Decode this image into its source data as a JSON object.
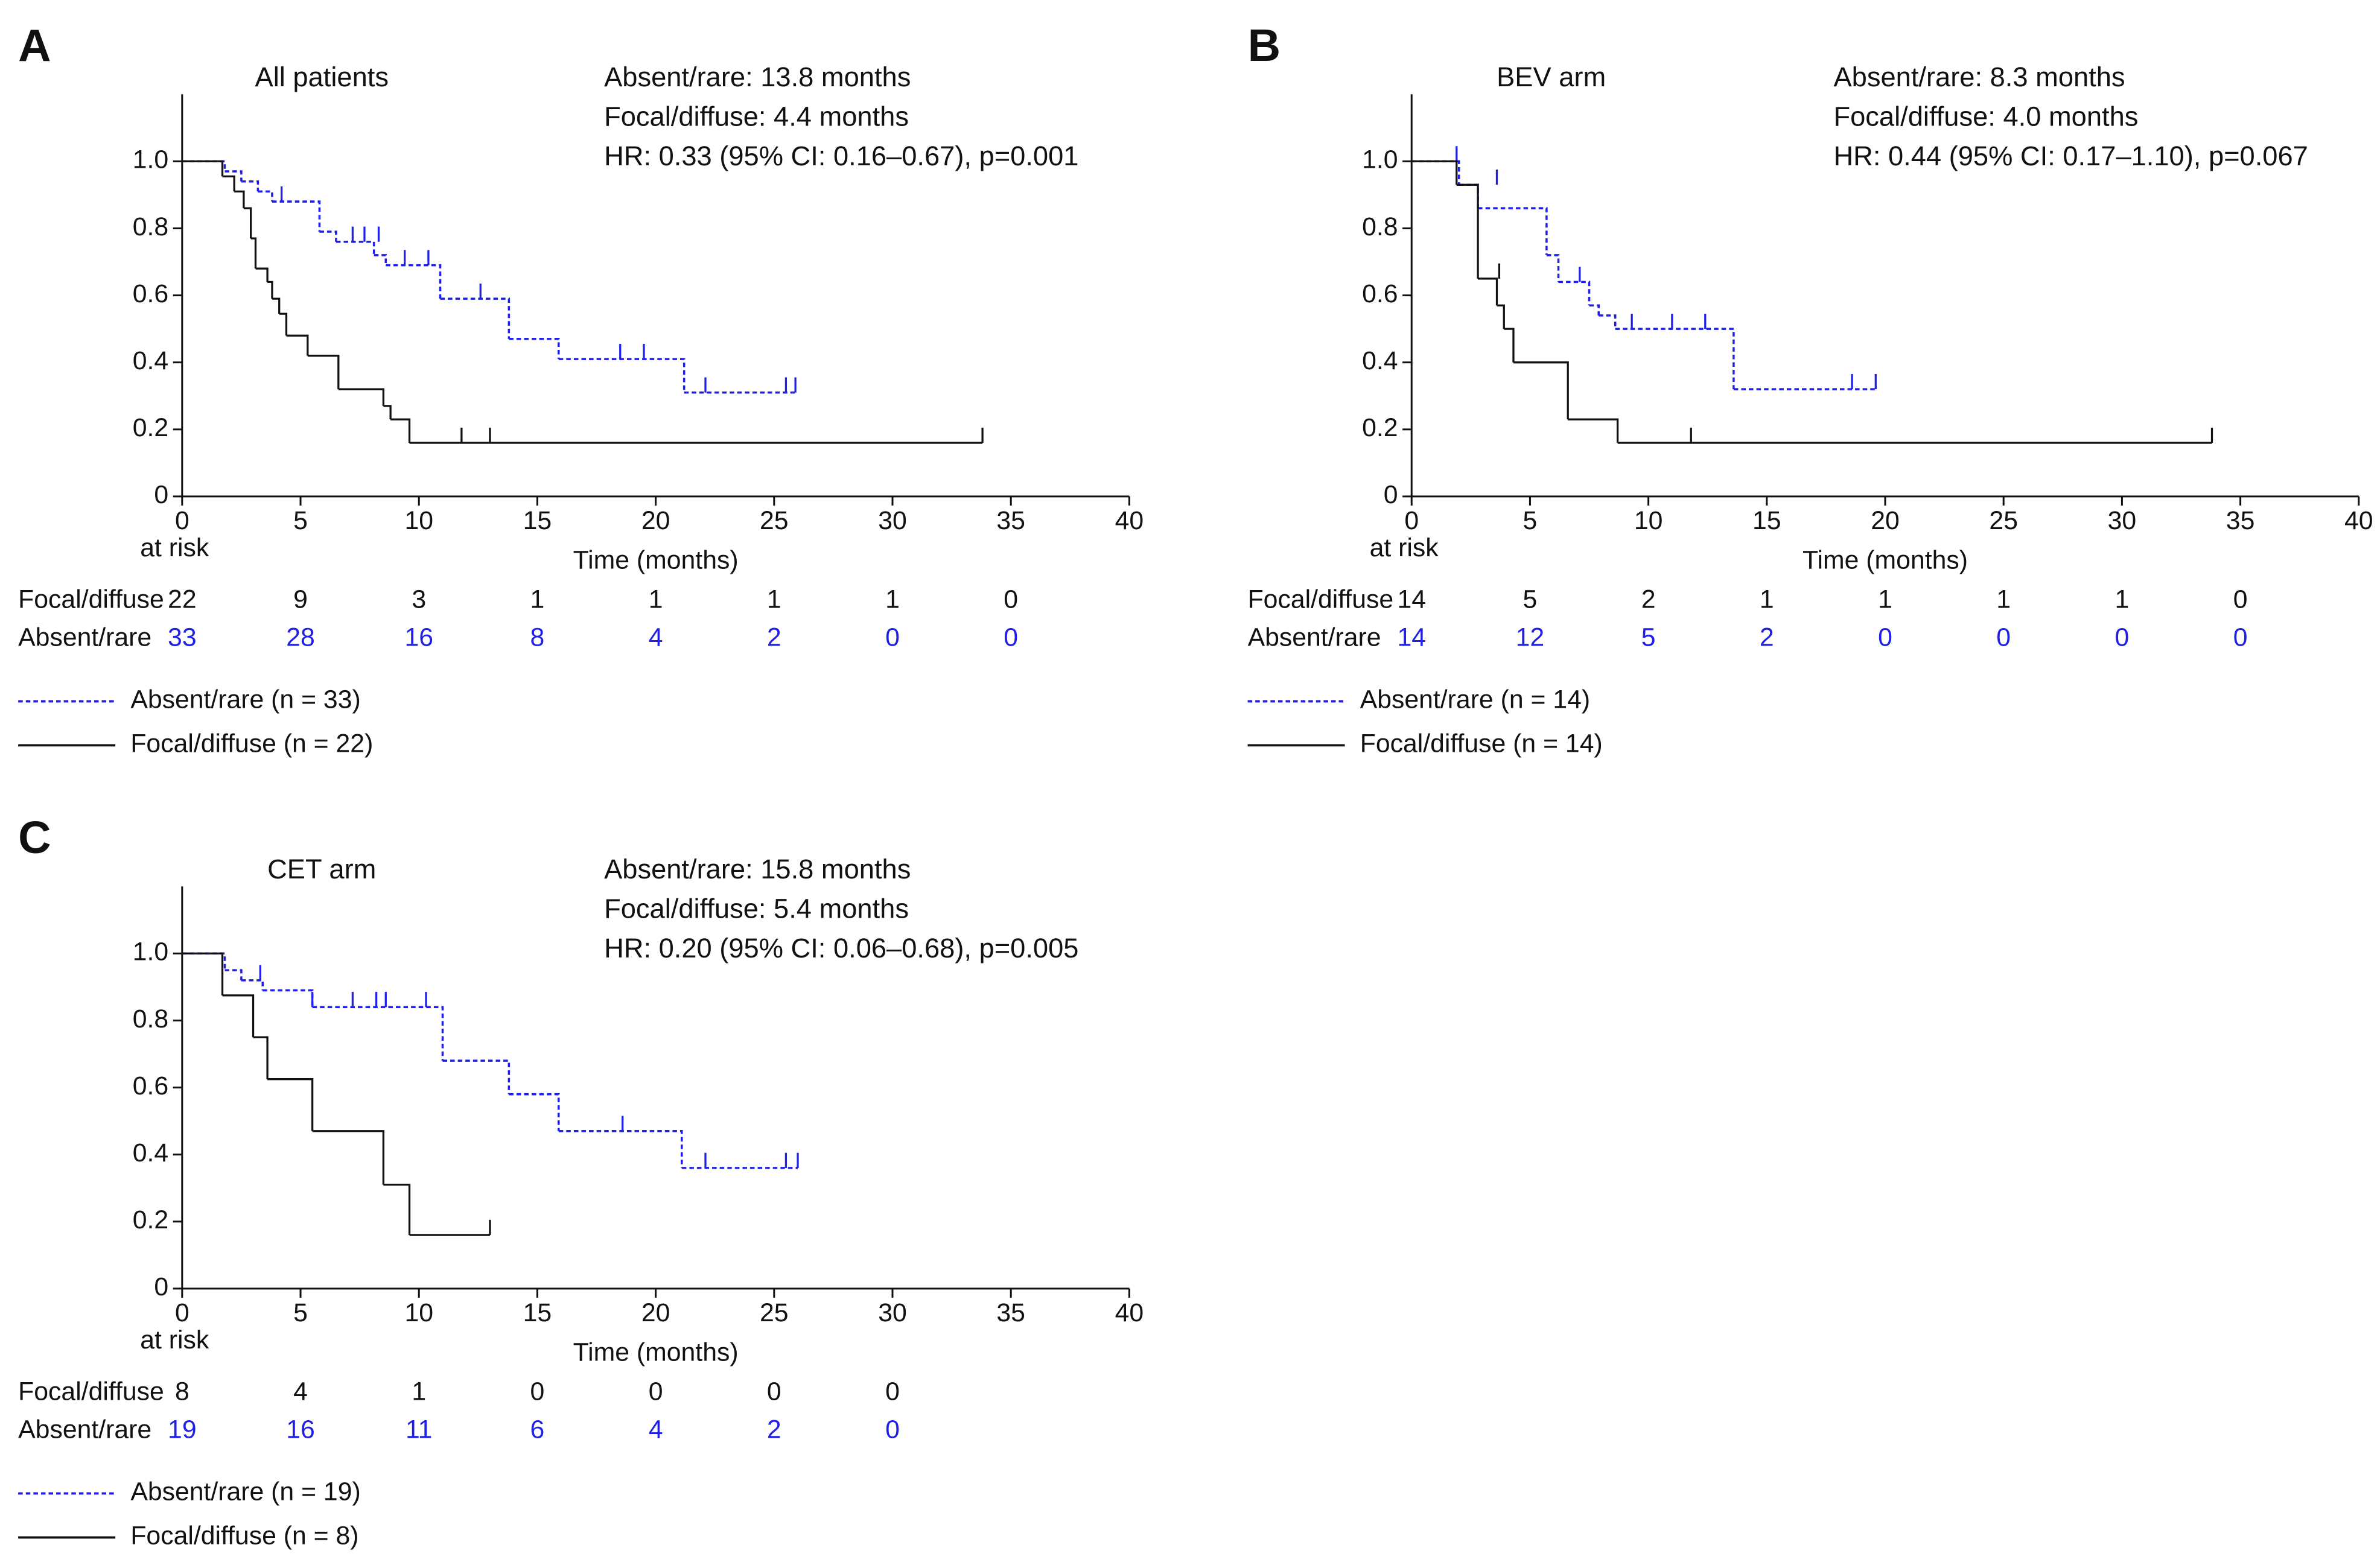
{
  "chart_data": [
    {
      "type": "step",
      "panel": "A",
      "title": "All patients",
      "annotations": [
        "Absent/rare: 13.8 months",
        "Focal/diffuse: 4.4 months",
        "HR: 0.33 (95% CI: 0.16–0.67), p=0.001"
      ],
      "xlabel": "Time (months)",
      "xlim": [
        0,
        40
      ],
      "xticks": [
        0,
        5,
        10,
        15,
        20,
        25,
        30,
        35,
        40
      ],
      "ylim": [
        0,
        1.2
      ],
      "yticks": [
        0,
        0.2,
        0.4,
        0.6,
        0.8,
        {
          "value": 1,
          "label": "1.0"
        }
      ],
      "series": [
        {
          "name": "Absent/rare (n = 33)",
          "color": "#1f1fe6",
          "dashed": true,
          "x": [
            0,
            1.8,
            2.5,
            3.2,
            3.8,
            5.8,
            6.5,
            8.1,
            8.6,
            10.9,
            13.8,
            15.9,
            21.2,
            25.9
          ],
          "values": [
            1,
            0.97,
            0.94,
            0.91,
            0.88,
            0.79,
            0.76,
            0.72,
            0.69,
            0.59,
            0.47,
            0.41,
            0.31,
            0.31
          ],
          "censor_x": [
            4.2,
            7.2,
            7.7,
            8.3,
            9.4,
            10.4,
            12.6,
            18.5,
            19.5,
            22.1,
            25.5,
            25.9
          ],
          "censor_values": [
            0.88,
            0.76,
            0.76,
            0.76,
            0.69,
            0.69,
            0.59,
            0.41,
            0.41,
            0.31,
            0.31,
            0.31
          ]
        },
        {
          "name": "Focal/diffuse (n = 22)",
          "color": "#111111",
          "dashed": false,
          "x": [
            0,
            1.7,
            2.2,
            2.6,
            2.9,
            3.1,
            3.6,
            3.8,
            4.1,
            4.4,
            5.3,
            6.6,
            8.5,
            8.8,
            9.6,
            33.8
          ],
          "values": [
            1,
            0.955,
            0.91,
            0.86,
            0.77,
            0.68,
            0.64,
            0.59,
            0.545,
            0.48,
            0.42,
            0.32,
            0.27,
            0.23,
            0.16,
            0.16
          ],
          "censor_x": [
            11.8,
            13,
            33.8
          ],
          "censor_values": [
            0.16,
            0.16,
            0.16
          ]
        }
      ],
      "risk_table": {
        "label": "at risk",
        "rows": [
          {
            "name": "Focal/diffuse",
            "color": "#111111",
            "values": [
              22,
              9,
              3,
              1,
              1,
              1,
              1,
              0
            ]
          },
          {
            "name": "Absent/rare",
            "color": "#1f1fe6",
            "values": [
              33,
              28,
              16,
              8,
              4,
              2,
              0,
              0
            ]
          }
        ]
      }
    },
    {
      "type": "step",
      "panel": "B",
      "title": "BEV arm",
      "annotations": [
        "Absent/rare: 8.3 months",
        "Focal/diffuse: 4.0 months",
        "HR: 0.44 (95% CI: 0.17–1.10), p=0.067"
      ],
      "xlabel": "Time (months)",
      "xlim": [
        0,
        40
      ],
      "xticks": [
        0,
        5,
        10,
        15,
        20,
        25,
        30,
        35,
        40
      ],
      "ylim": [
        0,
        1.2
      ],
      "yticks": [
        0,
        0.2,
        0.4,
        0.6,
        0.8,
        {
          "value": 1,
          "label": "1.0"
        }
      ],
      "series": [
        {
          "name": "Absent/rare (n = 14)",
          "color": "#1f1fe6",
          "dashed": true,
          "x": [
            0,
            2.0,
            2.8,
            5.7,
            6.2,
            7.5,
            7.9,
            8.6,
            13.6,
            19.6
          ],
          "values": [
            1,
            0.93,
            0.86,
            0.72,
            0.64,
            0.57,
            0.54,
            0.5,
            0.32,
            0.32
          ],
          "censor_x": [
            1.9,
            3.6,
            7.1,
            9.3,
            11,
            12.4,
            18.6,
            19.6
          ],
          "censor_values": [
            1,
            0.93,
            0.64,
            0.5,
            0.5,
            0.5,
            0.32,
            0.32
          ]
        },
        {
          "name": "Focal/diffuse (n = 14)",
          "color": "#111111",
          "dashed": false,
          "x": [
            0,
            1.9,
            2.8,
            3.6,
            3.9,
            4.3,
            6.6,
            8.7,
            33.8
          ],
          "values": [
            1,
            0.93,
            0.65,
            0.57,
            0.5,
            0.4,
            0.23,
            0.16,
            0.16
          ],
          "censor_x": [
            3.7,
            11.8,
            33.8
          ],
          "censor_values": [
            0.65,
            0.16,
            0.16
          ]
        }
      ],
      "risk_table": {
        "label": "at risk",
        "rows": [
          {
            "name": "Focal/diffuse",
            "color": "#111111",
            "values": [
              14,
              5,
              2,
              1,
              1,
              1,
              1,
              0
            ]
          },
          {
            "name": "Absent/rare",
            "color": "#1f1fe6",
            "values": [
              14,
              12,
              5,
              2,
              0,
              0,
              0,
              0
            ]
          }
        ]
      }
    },
    {
      "type": "step",
      "panel": "C",
      "title": "CET arm",
      "annotations": [
        "Absent/rare: 15.8 months",
        "Focal/diffuse: 5.4 months",
        "HR: 0.20 (95% CI: 0.06–0.68), p=0.005"
      ],
      "xlabel": "Time (months)",
      "xlim": [
        0,
        40
      ],
      "xticks": [
        0,
        5,
        10,
        15,
        20,
        25,
        30,
        35,
        40
      ],
      "ylim": [
        0,
        1.2
      ],
      "yticks": [
        0,
        0.2,
        0.4,
        0.6,
        0.8,
        {
          "value": 1,
          "label": "1.0"
        }
      ],
      "series": [
        {
          "name": "Absent/rare (n = 19)",
          "color": "#1f1fe6",
          "dashed": true,
          "x": [
            0,
            1.8,
            2.5,
            3.4,
            5.5,
            11,
            13.8,
            15.9,
            21.1,
            26
          ],
          "values": [
            1,
            0.95,
            0.92,
            0.89,
            0.84,
            0.68,
            0.58,
            0.47,
            0.36,
            0.36
          ],
          "censor_x": [
            3.3,
            5.5,
            7.2,
            8.2,
            8.6,
            10.3,
            18.6,
            22.1,
            25.5,
            26
          ],
          "censor_values": [
            0.92,
            0.84,
            0.84,
            0.84,
            0.84,
            0.84,
            0.47,
            0.36,
            0.36,
            0.36
          ]
        },
        {
          "name": "Focal/diffuse (n = 8)",
          "color": "#111111",
          "dashed": false,
          "x": [
            0,
            1.7,
            3.0,
            3.6,
            5.5,
            8.5,
            9.6,
            13
          ],
          "values": [
            1,
            0.875,
            0.75,
            0.625,
            0.47,
            0.31,
            0.16,
            0.16
          ],
          "censor_x": [
            13
          ],
          "censor_values": [
            0.16
          ]
        }
      ],
      "risk_table": {
        "label": "at risk",
        "rows": [
          {
            "name": "Focal/diffuse",
            "color": "#111111",
            "values": [
              8,
              4,
              1,
              0,
              0,
              0,
              0
            ]
          },
          {
            "name": "Absent/rare",
            "color": "#1f1fe6",
            "values": [
              19,
              16,
              11,
              6,
              4,
              2,
              0
            ]
          }
        ]
      }
    }
  ]
}
